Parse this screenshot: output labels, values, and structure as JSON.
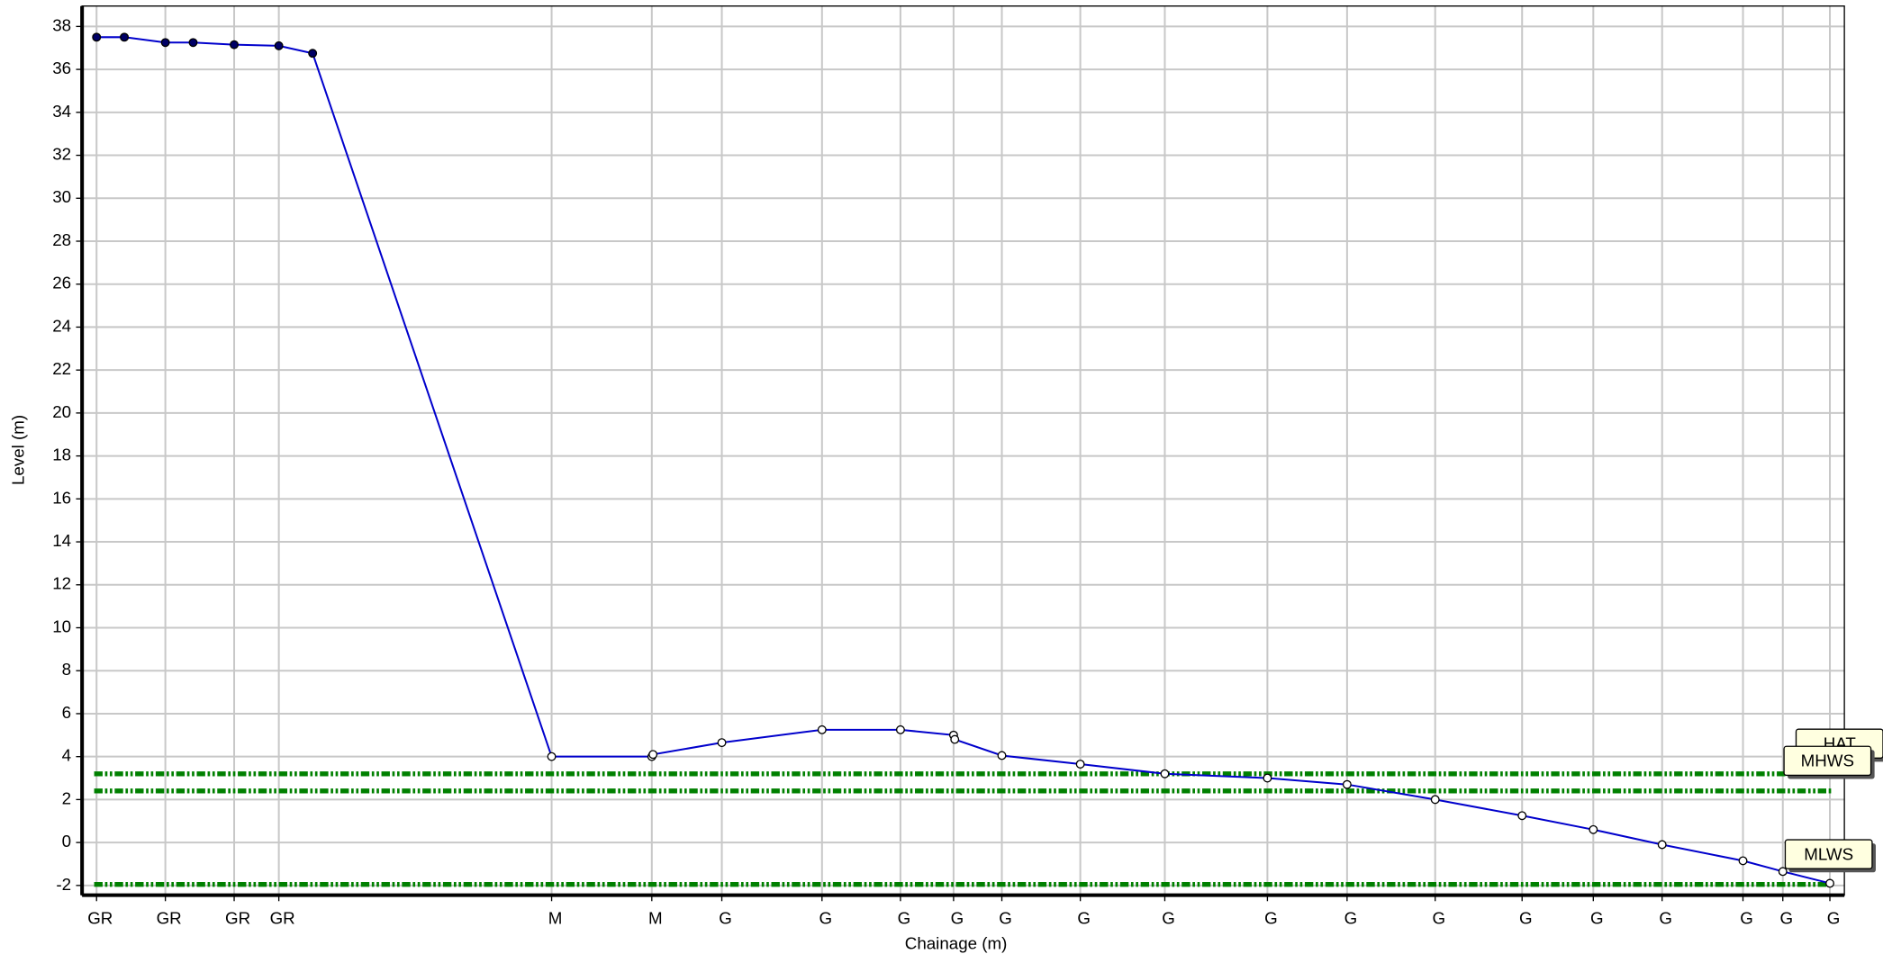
{
  "chart_data": {
    "type": "line",
    "xlabel": "Chainage (m)",
    "ylabel": "Level (m)",
    "xlim": [
      0,
      146
    ],
    "ylim": [
      -2.45,
      38.95
    ],
    "yticks": [
      -2,
      0,
      2,
      4,
      6,
      8,
      10,
      12,
      14,
      16,
      18,
      20,
      22,
      24,
      26,
      28,
      30,
      32,
      34,
      36,
      38
    ],
    "xticks": [
      {
        "value": 1.2,
        "label": "GR"
      },
      {
        "value": 6.9,
        "label": "GR"
      },
      {
        "value": 12.6,
        "label": "GR"
      },
      {
        "value": 16.3,
        "label": "GR"
      },
      {
        "value": 38.9,
        "label": "M"
      },
      {
        "value": 47.2,
        "label": "M"
      },
      {
        "value": 53.0,
        "label": "G"
      },
      {
        "value": 61.3,
        "label": "G"
      },
      {
        "value": 67.8,
        "label": "G"
      },
      {
        "value": 72.2,
        "label": "G"
      },
      {
        "value": 76.2,
        "label": "G"
      },
      {
        "value": 82.7,
        "label": "G"
      },
      {
        "value": 89.7,
        "label": "G"
      },
      {
        "value": 98.2,
        "label": "G"
      },
      {
        "value": 104.8,
        "label": "G"
      },
      {
        "value": 112.1,
        "label": "G"
      },
      {
        "value": 119.3,
        "label": "G"
      },
      {
        "value": 125.2,
        "label": "G"
      },
      {
        "value": 130.9,
        "label": "G"
      },
      {
        "value": 137.6,
        "label": "G"
      },
      {
        "value": 140.9,
        "label": "G"
      },
      {
        "value": 144.8,
        "label": "G"
      }
    ],
    "grid": true,
    "joined": true,
    "series": [
      {
        "color": "#0000cc",
        "marker_fill": "#000066",
        "x": [
          1.2,
          3.5,
          6.9,
          9.2,
          12.6,
          16.3,
          19.1
        ],
        "values": [
          37.5,
          37.5,
          37.25,
          37.25,
          37.15,
          37.1,
          36.75
        ]
      },
      {
        "color": "#0000cc",
        "marker_fill": "#ffffff",
        "x": [
          38.9,
          47.2,
          47.3,
          53.0,
          61.3,
          67.8,
          72.2,
          72.3,
          76.2,
          82.7,
          89.7,
          98.2,
          104.8,
          112.1,
          119.3,
          125.2,
          130.9,
          137.6,
          140.9,
          144.8
        ],
        "values": [
          4.0,
          4.0,
          4.1,
          4.65,
          5.25,
          5.25,
          5.0,
          4.8,
          4.05,
          3.65,
          3.2,
          3.0,
          2.7,
          2.0,
          1.25,
          0.6,
          -0.1,
          -0.85,
          -1.35,
          -1.9
        ]
      }
    ],
    "ref_color": "#008000",
    "ref_lines": [
      {
        "label": "HAT",
        "value": 3.2
      },
      {
        "label": "MHWS",
        "value": 2.4
      },
      {
        "label": "MLWS",
        "value": -1.95
      }
    ]
  }
}
